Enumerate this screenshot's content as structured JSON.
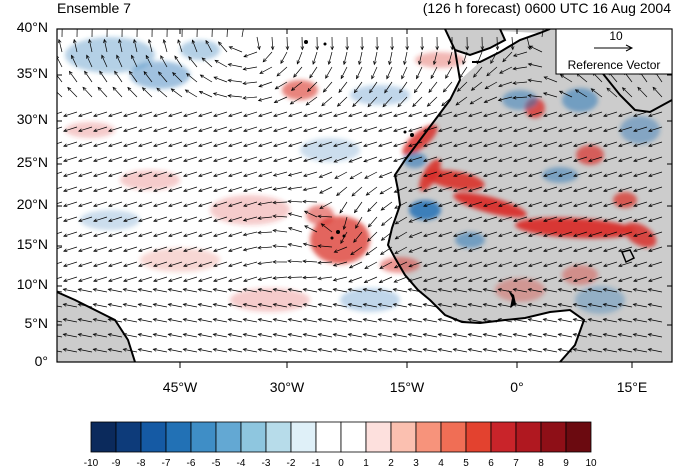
{
  "title": {
    "left": "Ensemble 7",
    "right": "(126 h forecast) 0600 UTC 16 Aug 2004"
  },
  "map": {
    "lat_labels": [
      "40°N",
      "35°N",
      "30°N",
      "25°N",
      "20°N",
      "15°N",
      "10°N",
      "5°N",
      "0°"
    ],
    "lon_labels": [
      "45°W",
      "30°W",
      "15°W",
      "0°",
      "15°E"
    ],
    "land_color": "#cccccc",
    "coast_color": "#000000"
  },
  "reference_vector": {
    "magnitude": "10",
    "label": "Reference Vector"
  },
  "colorbar": {
    "labels": [
      "-10",
      "-9",
      "-8",
      "-7",
      "-6",
      "-5",
      "-4",
      "-3",
      "-2",
      "-1",
      "0",
      "1",
      "2",
      "3",
      "4",
      "5",
      "6",
      "7",
      "8",
      "9",
      "10"
    ],
    "colors": [
      "#0b2a5c",
      "#0d3b7a",
      "#155aa4",
      "#2271b5",
      "#3f8ec6",
      "#63a8d3",
      "#8ec6df",
      "#b7dcea",
      "#dff0f8",
      "#ffffff",
      "#ffffff",
      "#fde0dd",
      "#fbc0b0",
      "#f7937b",
      "#f06e55",
      "#e3422f",
      "#c9242a",
      "#b01820",
      "#8e0f17",
      "#6b0a10"
    ]
  },
  "shading": {
    "positive_color": "#d9302a",
    "negative_color": "#2b77b8"
  }
}
